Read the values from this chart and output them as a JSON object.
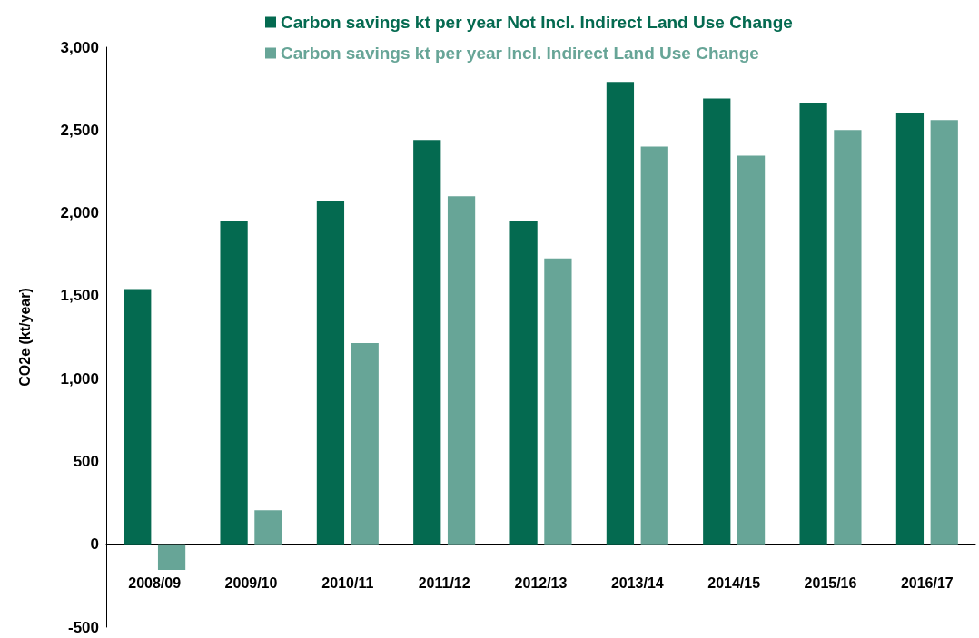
{
  "chart_data": {
    "type": "bar",
    "ylabel": "CO2e (kt/year)",
    "categories": [
      "2008/09",
      "2009/10",
      "2010/11",
      "2011/12",
      "2012/13",
      "2013/14",
      "2014/15",
      "2015/16",
      "2016/17"
    ],
    "series": [
      {
        "name": "Carbon savings kt per year Not Incl. Indirect Land Use Change",
        "color": "#046a50",
        "values": [
          1540,
          1950,
          2070,
          2440,
          1950,
          2790,
          2690,
          2665,
          2605
        ]
      },
      {
        "name": "Carbon savings kt per year Incl. Indirect Land Use Change",
        "color": "#67a597",
        "values": [
          -155,
          205,
          1215,
          2100,
          1725,
          2400,
          2345,
          2500,
          2560
        ]
      }
    ],
    "ylim": [
      -500,
      3000
    ],
    "yticks": [
      -500,
      0,
      500,
      {
        "value": 1000,
        "label": "1,000"
      },
      {
        "value": 1500,
        "label": "1,500"
      },
      {
        "value": 2000,
        "label": "2,000"
      },
      {
        "value": 2500,
        "label": "2,500"
      },
      {
        "value": 3000,
        "label": "3,000"
      }
    ],
    "legend": "top"
  }
}
